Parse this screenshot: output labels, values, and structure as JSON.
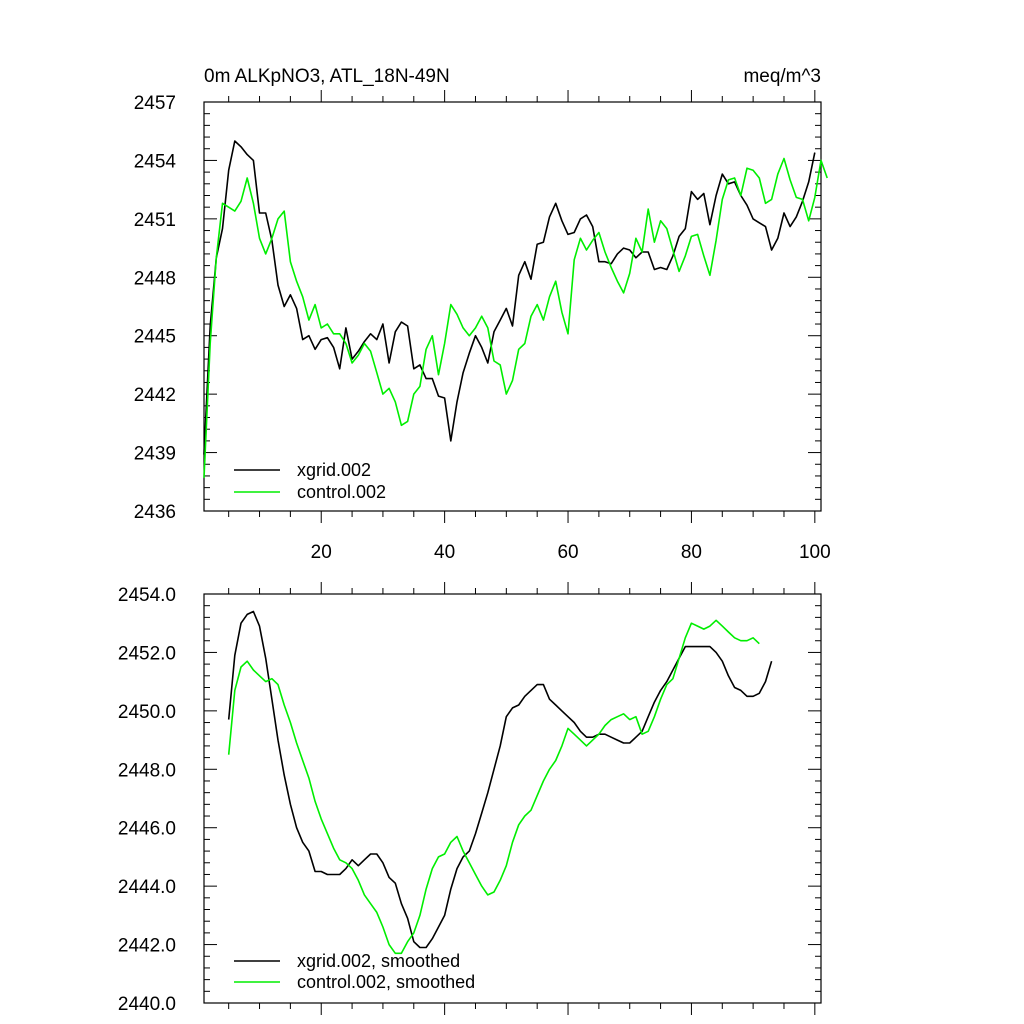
{
  "chart_data": [
    {
      "type": "line",
      "title_left": "0m ALKpNO3, ATL_18N-49N",
      "title_right": "meq/m^3",
      "xlabel": "",
      "ylabel": "",
      "xlim": [
        1,
        101
      ],
      "ylim": [
        2436,
        2457
      ],
      "yticks": [
        2436,
        2439,
        2442,
        2445,
        2448,
        2451,
        2454,
        2457
      ],
      "ytick_labels": [
        "2436",
        "2439",
        "2442",
        "2445",
        "2448",
        "2451",
        "2454",
        "2457"
      ],
      "xticks": [
        20,
        40,
        60,
        80,
        100
      ],
      "xtick_labels": [
        "20",
        "40",
        "60",
        "80",
        "100"
      ],
      "x_start": 1,
      "legend_position": "bottom-left",
      "series": [
        {
          "name": "xgrid.002",
          "color": "#000000",
          "values": [
            2438.9,
            2445.5,
            2449.0,
            2450.5,
            2453.5,
            2455.0,
            2454.7,
            2454.3,
            2454.0,
            2451.3,
            2451.3,
            2449.9,
            2447.6,
            2446.5,
            2447.1,
            2446.4,
            2444.8,
            2445.0,
            2444.3,
            2444.8,
            2444.9,
            2444.4,
            2443.3,
            2445.4,
            2443.8,
            2444.2,
            2444.7,
            2445.1,
            2444.8,
            2445.6,
            2443.6,
            2445.2,
            2445.7,
            2445.5,
            2443.3,
            2443.5,
            2442.8,
            2442.8,
            2441.9,
            2441.8,
            2439.6,
            2441.6,
            2443.1,
            2444.1,
            2445.0,
            2444.4,
            2443.6,
            2445.2,
            2445.8,
            2446.4,
            2445.5,
            2448.1,
            2448.8,
            2447.9,
            2449.7,
            2449.8,
            2451.1,
            2451.8,
            2450.9,
            2450.2,
            2450.3,
            2451.0,
            2451.2,
            2450.6,
            2448.8,
            2448.8,
            2448.7,
            2449.2,
            2449.5,
            2449.4,
            2449.0,
            2449.3,
            2449.3,
            2448.4,
            2448.5,
            2448.4,
            2449.1,
            2450.1,
            2450.5,
            2452.4,
            2452.0,
            2452.3,
            2450.7,
            2452.2,
            2453.3,
            2452.8,
            2452.9,
            2452.2,
            2451.7,
            2451.0,
            2450.8,
            2450.6,
            2449.4,
            2450.0,
            2451.3,
            2450.6,
            2451.1,
            2451.9,
            2452.9,
            2454.4
          ]
        },
        {
          "name": "control.002",
          "color": "#00ee00",
          "values": [
            2437.7,
            2444.6,
            2449.0,
            2451.8,
            2451.6,
            2451.4,
            2451.9,
            2453.1,
            2451.8,
            2450.0,
            2449.2,
            2450.0,
            2451.0,
            2451.4,
            2448.8,
            2447.8,
            2447.0,
            2445.8,
            2446.6,
            2445.4,
            2445.6,
            2445.1,
            2445.1,
            2444.6,
            2443.6,
            2444.0,
            2444.6,
            2444.2,
            2443.1,
            2442.0,
            2442.3,
            2441.6,
            2440.4,
            2440.6,
            2442.0,
            2442.4,
            2444.3,
            2445.0,
            2443.0,
            2444.6,
            2446.6,
            2446.1,
            2445.4,
            2445.0,
            2445.4,
            2446.0,
            2445.4,
            2443.7,
            2443.5,
            2442.0,
            2442.7,
            2444.3,
            2444.6,
            2446.0,
            2446.6,
            2445.8,
            2447.0,
            2447.8,
            2446.2,
            2445.1,
            2448.9,
            2450.0,
            2449.4,
            2449.9,
            2450.3,
            2449.3,
            2448.5,
            2447.8,
            2447.2,
            2448.2,
            2450.0,
            2449.3,
            2451.5,
            2449.8,
            2450.9,
            2450.5,
            2449.4,
            2448.3,
            2449.1,
            2450.1,
            2450.2,
            2449.1,
            2448.1,
            2449.9,
            2452.0,
            2453.0,
            2453.1,
            2452.2,
            2453.6,
            2453.5,
            2453.1,
            2451.8,
            2452.0,
            2453.3,
            2454.1,
            2453.0,
            2452.1,
            2452.0,
            2450.9,
            2452.1,
            2454.0,
            2453.1
          ]
        }
      ]
    },
    {
      "type": "line",
      "title_left": "",
      "title_right": "",
      "xlabel": "",
      "ylabel": "",
      "xlim": [
        1,
        101
      ],
      "ylim": [
        2440.0,
        2454.0
      ],
      "yticks": [
        2440,
        2442,
        2444,
        2446,
        2448,
        2450,
        2452,
        2454
      ],
      "ytick_labels": [
        "2440.0",
        "2442.0",
        "2444.0",
        "2446.0",
        "2448.0",
        "2450.0",
        "2452.0",
        "2454.0"
      ],
      "xticks": [
        20,
        40,
        60,
        80,
        100
      ],
      "xtick_labels": [],
      "x_start": 5,
      "legend_position": "bottom-left",
      "series": [
        {
          "name": "xgrid.002, smoothed",
          "color": "#000000",
          "values": [
            2449.7,
            2451.9,
            2453.0,
            2453.3,
            2453.4,
            2452.9,
            2451.8,
            2450.4,
            2449.0,
            2447.8,
            2446.8,
            2446.0,
            2445.5,
            2445.2,
            2444.5,
            2444.5,
            2444.4,
            2444.4,
            2444.4,
            2444.6,
            2444.9,
            2444.7,
            2444.9,
            2445.1,
            2445.1,
            2444.8,
            2444.3,
            2444.1,
            2443.4,
            2442.9,
            2442.1,
            2441.9,
            2441.9,
            2442.2,
            2442.6,
            2443.0,
            2443.9,
            2444.6,
            2445.0,
            2445.2,
            2445.8,
            2446.5,
            2447.2,
            2448.0,
            2448.8,
            2449.8,
            2450.1,
            2450.2,
            2450.5,
            2450.7,
            2450.9,
            2450.9,
            2450.4,
            2450.2,
            2450.0,
            2449.8,
            2449.6,
            2449.3,
            2449.1,
            2449.1,
            2449.2,
            2449.2,
            2449.1,
            2449.0,
            2448.9,
            2448.9,
            2449.1,
            2449.3,
            2449.8,
            2450.3,
            2450.7,
            2451.0,
            2451.4,
            2451.8,
            2452.2,
            2452.2,
            2452.2,
            2452.2,
            2452.2,
            2452.0,
            2451.7,
            2451.2,
            2450.8,
            2450.7,
            2450.5,
            2450.5,
            2450.6,
            2451.0,
            2451.7
          ]
        },
        {
          "name": "control.002, smoothed",
          "color": "#00ee00",
          "values": [
            2448.5,
            2450.7,
            2451.5,
            2451.7,
            2451.4,
            2451.2,
            2451.0,
            2451.1,
            2450.9,
            2450.2,
            2449.6,
            2448.9,
            2448.3,
            2447.7,
            2446.9,
            2446.3,
            2445.8,
            2445.3,
            2444.9,
            2444.8,
            2444.6,
            2444.2,
            2443.7,
            2443.4,
            2443.1,
            2442.6,
            2442.0,
            2441.7,
            2441.7,
            2442.1,
            2442.4,
            2443.0,
            2443.9,
            2444.6,
            2445.0,
            2445.1,
            2445.5,
            2445.7,
            2445.2,
            2444.8,
            2444.4,
            2444.0,
            2443.7,
            2443.8,
            2444.2,
            2444.7,
            2445.5,
            2446.1,
            2446.4,
            2446.6,
            2447.1,
            2447.6,
            2448.0,
            2448.3,
            2448.8,
            2449.4,
            2449.2,
            2449.0,
            2448.8,
            2449.0,
            2449.2,
            2449.5,
            2449.7,
            2449.8,
            2449.9,
            2449.7,
            2449.8,
            2449.2,
            2449.3,
            2449.8,
            2450.4,
            2450.9,
            2451.1,
            2451.8,
            2452.5,
            2453.0,
            2452.9,
            2452.8,
            2452.9,
            2453.1,
            2452.9,
            2452.7,
            2452.5,
            2452.4,
            2452.4,
            2452.5,
            2452.3
          ]
        }
      ]
    }
  ]
}
